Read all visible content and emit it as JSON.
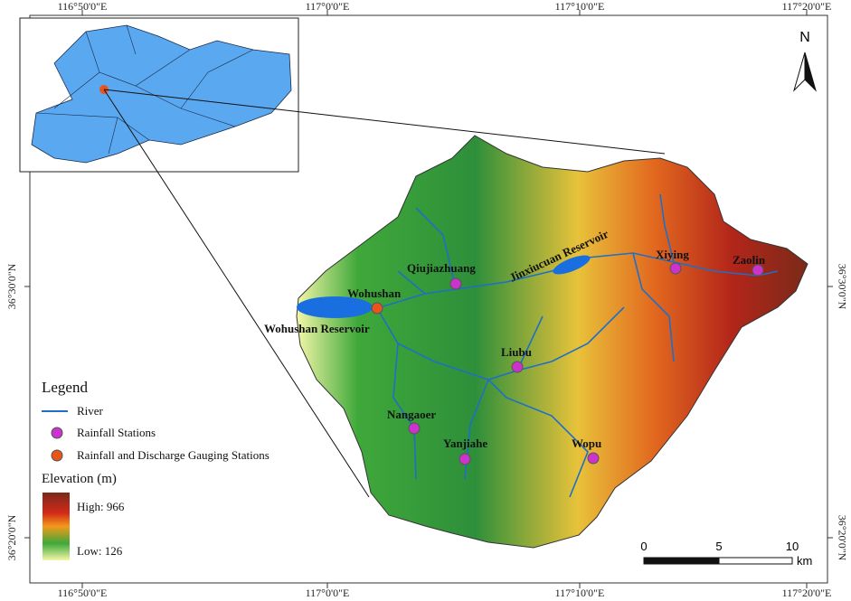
{
  "graticule": {
    "top": [
      "116°50'0\"E",
      "117°0'0\"E",
      "117°10'0\"E",
      "117°20'0\"E"
    ],
    "bottom": [
      "116°50'0\"E",
      "117°0'0\"E",
      "117°10'0\"E",
      "117°20'0\"E"
    ],
    "left": [
      "36°30'0\"N",
      "36°20'0\"N"
    ],
    "right": [
      "36°30'0\"N",
      "36°20'0\"N"
    ]
  },
  "north": "N",
  "rainfall_stations": [
    "Qiujiazhuang",
    "Xiying",
    "Zaolin",
    "Liubu",
    "Nangaoer",
    "Yanjiahe",
    "Wopu"
  ],
  "gauging_stations": [
    "Wohushan"
  ],
  "reservoirs": [
    "Jinxiucuan Reservoir",
    "Wohushan Reservoir"
  ],
  "legend": {
    "title": "Legend",
    "items": [
      "River",
      "Rainfall Stations",
      "Rainfall and Discharge Gauging Stations"
    ],
    "elevation_title": "Elevation (m)",
    "high": "High: 966",
    "low": "Low: 126"
  },
  "scale_bar": {
    "labels": [
      "0",
      "5",
      "10"
    ],
    "unit": "km"
  }
}
